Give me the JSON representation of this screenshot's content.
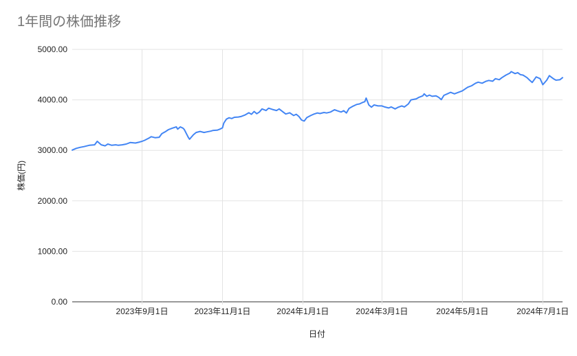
{
  "chart_data": {
    "type": "line",
    "title": "1年間の株価推移",
    "xlabel": "日付",
    "ylabel": "株価(円)",
    "ylim": [
      0,
      5000
    ],
    "grid": true,
    "legend": false,
    "line_color": "#4285f4",
    "y_ticks": [
      {
        "value": 0,
        "label": "0.00"
      },
      {
        "value": 1000,
        "label": "1000.00"
      },
      {
        "value": 2000,
        "label": "2000.00"
      },
      {
        "value": 3000,
        "label": "3000.00"
      },
      {
        "value": 4000,
        "label": "4000.00"
      },
      {
        "value": 5000,
        "label": "5000.00"
      }
    ],
    "x_ticks": [
      {
        "date": "2023/09/01",
        "label": "2023年9月1日"
      },
      {
        "date": "2023/11/01",
        "label": "2023年11月1日"
      },
      {
        "date": "2024/01/01",
        "label": "2024年1月1日"
      },
      {
        "date": "2024/03/01",
        "label": "2024年3月1日"
      },
      {
        "date": "2024/05/01",
        "label": "2024年5月1日"
      },
      {
        "date": "2024/07/01",
        "label": "2024年7月1日"
      }
    ],
    "series": [
      {
        "name": "株価",
        "dates": [
          "2023/07/10",
          "2023/07/13",
          "2023/07/16",
          "2023/07/19",
          "2023/07/23",
          "2023/07/27",
          "2023/07/29",
          "2023/08/01",
          "2023/08/04",
          "2023/08/06",
          "2023/08/09",
          "2023/08/12",
          "2023/08/14",
          "2023/08/17",
          "2023/08/20",
          "2023/08/23",
          "2023/08/27",
          "2023/08/30",
          "2023/09/01",
          "2023/09/03",
          "2023/09/06",
          "2023/09/08",
          "2023/09/11",
          "2023/09/14",
          "2023/09/16",
          "2023/09/19",
          "2023/09/21",
          "2023/09/24",
          "2023/09/27",
          "2023/09/28",
          "2023/09/30",
          "2023/10/02",
          "2023/10/03",
          "2023/10/06",
          "2023/10/07",
          "2023/10/10",
          "2023/10/12",
          "2023/10/15",
          "2023/10/18",
          "2023/10/20",
          "2023/10/23",
          "2023/10/25",
          "2023/10/28",
          "2023/10/30",
          "2023/11/01",
          "2023/11/02",
          "2023/11/04",
          "2023/11/06",
          "2023/11/08",
          "2023/11/10",
          "2023/11/13",
          "2023/11/15",
          "2023/11/18",
          "2023/11/21",
          "2023/11/23",
          "2023/11/25",
          "2023/11/27",
          "2023/11/29",
          "2023/12/01",
          "2023/12/04",
          "2023/12/06",
          "2023/12/09",
          "2023/12/12",
          "2023/12/14",
          "2023/12/17",
          "2023/12/19",
          "2023/12/22",
          "2023/12/25",
          "2023/12/27",
          "2023/12/29",
          "2023/12/31",
          "2024/01/02",
          "2024/01/04",
          "2024/01/07",
          "2024/01/09",
          "2024/01/12",
          "2024/01/14",
          "2024/01/17",
          "2024/01/19",
          "2024/01/22",
          "2024/01/25",
          "2024/01/27",
          "2024/01/30",
          "2024/02/01",
          "2024/02/03",
          "2024/02/05",
          "2024/02/08",
          "2024/02/10",
          "2024/02/11",
          "2024/02/13",
          "2024/02/15",
          "2024/02/17",
          "2024/02/18",
          "2024/02/20",
          "2024/02/22",
          "2024/02/24",
          "2024/02/27",
          "2024/03/01",
          "2024/03/03",
          "2024/03/06",
          "2024/03/08",
          "2024/03/11",
          "2024/03/13",
          "2024/03/16",
          "2024/03/18",
          "2024/03/21",
          "2024/03/23",
          "2024/03/27",
          "2024/03/29",
          "2024/04/01",
          "2024/04/02",
          "2024/04/04",
          "2024/04/06",
          "2024/04/08",
          "2024/04/11",
          "2024/04/13",
          "2024/04/15",
          "2024/04/17",
          "2024/04/20",
          "2024/04/22",
          "2024/04/25",
          "2024/04/27",
          "2024/05/01",
          "2024/05/05",
          "2024/05/08",
          "2024/05/11",
          "2024/05/13",
          "2024/05/16",
          "2024/05/19",
          "2024/05/21",
          "2024/05/24",
          "2024/05/26",
          "2024/05/29",
          "2024/05/31",
          "2024/06/03",
          "2024/06/06",
          "2024/06/07",
          "2024/06/10",
          "2024/06/12",
          "2024/06/14",
          "2024/06/16",
          "2024/06/19",
          "2024/06/21",
          "2024/06/23",
          "2024/06/26",
          "2024/06/29",
          "2024/07/01",
          "2024/07/04",
          "2024/07/06",
          "2024/07/09",
          "2024/07/11",
          "2024/07/14",
          "2024/07/16"
        ],
        "values": [
          3005,
          3040,
          3060,
          3075,
          3100,
          3110,
          3180,
          3110,
          3090,
          3125,
          3100,
          3110,
          3100,
          3110,
          3125,
          3155,
          3145,
          3165,
          3180,
          3200,
          3240,
          3270,
          3250,
          3260,
          3330,
          3375,
          3410,
          3440,
          3465,
          3420,
          3465,
          3440,
          3415,
          3260,
          3220,
          3310,
          3355,
          3375,
          3355,
          3365,
          3380,
          3395,
          3400,
          3420,
          3445,
          3540,
          3620,
          3645,
          3630,
          3655,
          3660,
          3670,
          3700,
          3745,
          3715,
          3770,
          3725,
          3760,
          3820,
          3790,
          3835,
          3810,
          3790,
          3820,
          3760,
          3720,
          3745,
          3690,
          3715,
          3670,
          3600,
          3580,
          3650,
          3690,
          3715,
          3740,
          3730,
          3750,
          3740,
          3760,
          3805,
          3785,
          3760,
          3785,
          3740,
          3830,
          3875,
          3900,
          3910,
          3920,
          3945,
          3965,
          4035,
          3900,
          3855,
          3900,
          3880,
          3880,
          3860,
          3840,
          3860,
          3820,
          3850,
          3880,
          3860,
          3920,
          4000,
          4020,
          4050,
          4080,
          4120,
          4070,
          4095,
          4070,
          4080,
          4050,
          4005,
          4090,
          4125,
          4150,
          4120,
          4140,
          4180,
          4250,
          4280,
          4330,
          4350,
          4330,
          4370,
          4385,
          4370,
          4420,
          4400,
          4440,
          4490,
          4530,
          4560,
          4520,
          4540,
          4500,
          4490,
          4440,
          4390,
          4345,
          4455,
          4420,
          4300,
          4390,
          4480,
          4420,
          4390,
          4400,
          4440
        ]
      }
    ]
  }
}
